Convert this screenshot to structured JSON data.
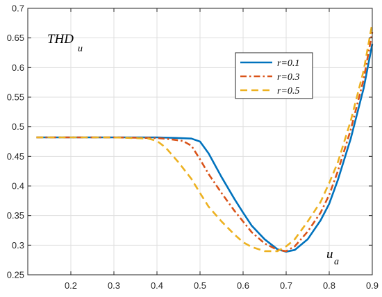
{
  "chart_data": {
    "type": "line",
    "title": "",
    "xlabel": "",
    "ylabel": "",
    "xlim": [
      0.1,
      0.9
    ],
    "ylim": [
      0.25,
      0.7
    ],
    "xticks": [
      "0.2",
      "0.3",
      "0.4",
      "0.5",
      "0.6",
      "0.7",
      "0.8",
      "0.9"
    ],
    "yticks": [
      "0.25",
      "0.3",
      "0.35",
      "0.4",
      "0.45",
      "0.5",
      "0.55",
      "0.6",
      "0.65",
      "0.7"
    ],
    "grid": true,
    "legend_position": "top-right",
    "annotations": {
      "y_symbol_main": "THD",
      "y_symbol_sub": "u",
      "x_symbol_main": "u",
      "x_symbol_sub": "a"
    },
    "series": [
      {
        "name": "r=0.1",
        "color": "#0072BD",
        "style": "solid",
        "x": [
          0.12,
          0.2,
          0.3,
          0.4,
          0.45,
          0.48,
          0.5,
          0.52,
          0.55,
          0.58,
          0.6,
          0.62,
          0.65,
          0.68,
          0.7,
          0.72,
          0.75,
          0.78,
          0.8,
          0.82,
          0.85,
          0.88,
          0.9
        ],
        "y": [
          0.482,
          0.482,
          0.482,
          0.482,
          0.481,
          0.48,
          0.475,
          0.455,
          0.415,
          0.378,
          0.355,
          0.333,
          0.31,
          0.293,
          0.289,
          0.292,
          0.31,
          0.342,
          0.37,
          0.41,
          0.48,
          0.565,
          0.64
        ]
      },
      {
        "name": "r=0.3",
        "color": "#D95319",
        "style": "dashdot",
        "x": [
          0.12,
          0.2,
          0.3,
          0.4,
          0.43,
          0.46,
          0.48,
          0.5,
          0.52,
          0.55,
          0.58,
          0.6,
          0.62,
          0.65,
          0.68,
          0.7,
          0.72,
          0.75,
          0.78,
          0.8,
          0.82,
          0.85,
          0.88,
          0.9
        ],
        "y": [
          0.482,
          0.482,
          0.482,
          0.481,
          0.479,
          0.476,
          0.468,
          0.445,
          0.42,
          0.388,
          0.358,
          0.34,
          0.322,
          0.303,
          0.292,
          0.29,
          0.298,
          0.323,
          0.355,
          0.385,
          0.425,
          0.495,
          0.58,
          0.66
        ]
      },
      {
        "name": "r=0.5",
        "color": "#EDB120",
        "style": "dashed",
        "x": [
          0.12,
          0.2,
          0.3,
          0.38,
          0.4,
          0.42,
          0.45,
          0.48,
          0.5,
          0.52,
          0.55,
          0.58,
          0.6,
          0.62,
          0.65,
          0.68,
          0.7,
          0.72,
          0.75,
          0.78,
          0.8,
          0.82,
          0.85,
          0.88,
          0.9
        ],
        "y": [
          0.482,
          0.482,
          0.482,
          0.48,
          0.476,
          0.465,
          0.44,
          0.412,
          0.388,
          0.365,
          0.34,
          0.318,
          0.305,
          0.297,
          0.29,
          0.29,
          0.298,
          0.31,
          0.34,
          0.373,
          0.405,
          0.44,
          0.51,
          0.595,
          0.675
        ]
      }
    ]
  }
}
